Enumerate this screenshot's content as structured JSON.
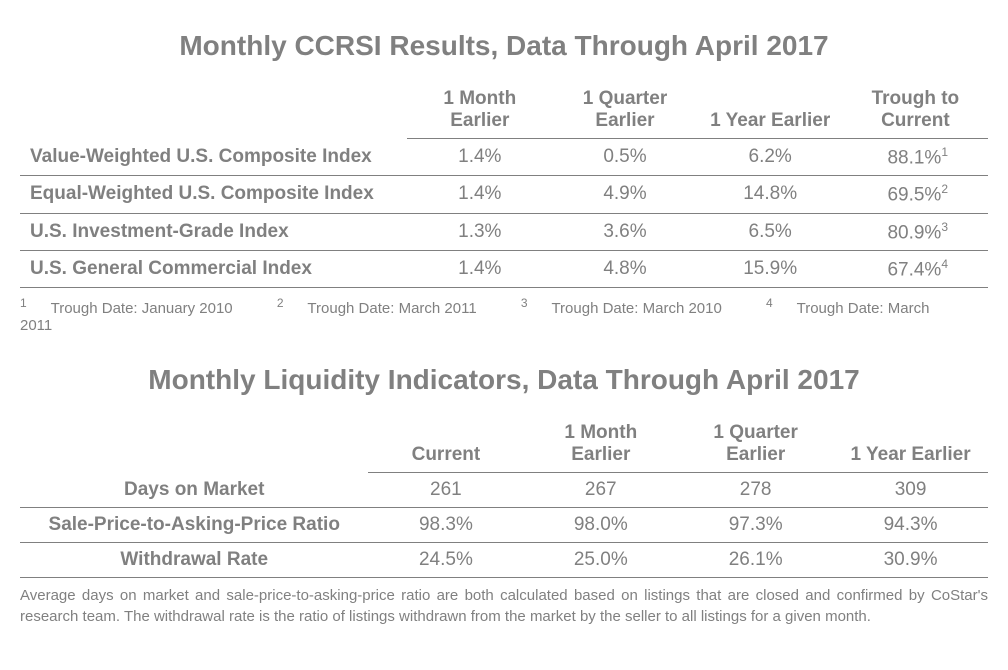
{
  "table1": {
    "title": "Monthly CCRSI Results, Data Through April 2017",
    "headers": [
      "1 Month Earlier",
      "1 Quarter Earlier",
      "1 Year Earlier",
      "Trough to Current"
    ],
    "rows": [
      {
        "label": "Value-Weighted U.S. Composite Index",
        "cells": [
          "1.4%",
          "0.5%",
          "6.2%"
        ],
        "trough": "88.1%",
        "sup": "1"
      },
      {
        "label": "Equal-Weighted U.S. Composite Index",
        "cells": [
          "1.4%",
          "4.9%",
          "14.8%"
        ],
        "trough": "69.5%",
        "sup": "2"
      },
      {
        "label": "U.S. Investment-Grade Index",
        "cells": [
          "1.3%",
          "3.6%",
          "6.5%"
        ],
        "trough": "80.9%",
        "sup": "3"
      },
      {
        "label": "U.S. General Commercial Index",
        "cells": [
          "1.4%",
          "4.8%",
          "15.9%"
        ],
        "trough": "67.4%",
        "sup": "4"
      }
    ],
    "footnotes": [
      {
        "sup": "1",
        "text": "Trough Date: January 2010"
      },
      {
        "sup": "2",
        "text": "Trough Date: March 2011"
      },
      {
        "sup": "3",
        "text": "Trough Date: March 2010"
      },
      {
        "sup": "4",
        "text": "Trough Date: March 2011"
      }
    ]
  },
  "table2": {
    "title": "Monthly Liquidity Indicators, Data Through April 2017",
    "headers": [
      "Current",
      "1 Month Earlier",
      "1 Quarter Earlier",
      "1 Year Earlier"
    ],
    "rows": [
      {
        "label": "Days on Market",
        "cells": [
          "261",
          "267",
          "278",
          "309"
        ]
      },
      {
        "label": "Sale-Price-to-Asking-Price Ratio",
        "cells": [
          "98.3%",
          "98.0%",
          "97.3%",
          "94.3%"
        ]
      },
      {
        "label": "Withdrawal Rate",
        "cells": [
          "24.5%",
          "25.0%",
          "26.1%",
          "30.9%"
        ]
      }
    ],
    "footnote_text": "Average days on market and sale-price-to-asking-price ratio are both calculated based on listings that are closed and confirmed by CoStar's research team. The withdrawal rate is the ratio of listings withdrawn from the market by the seller to all listings for a given month."
  }
}
